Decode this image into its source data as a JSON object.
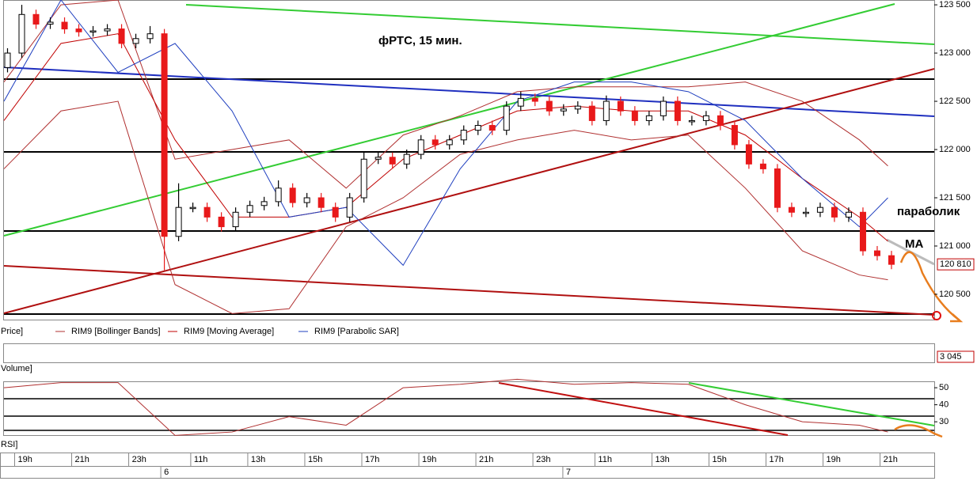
{
  "chart_data": [
    {
      "type": "candlestick",
      "title": "фРТС,  15 мин.",
      "legend_label": "Price]",
      "up_color": "#ffffff",
      "down_color": "#e8191a",
      "xlim": [
        0,
        130.5
      ],
      "ylim": [
        120270,
        123550
      ],
      "yticks": [
        {
          "value": 123500,
          "label": "123 500"
        },
        {
          "value": 123000,
          "label": "123 000"
        },
        {
          "value": 122500,
          "label": "122 500"
        },
        {
          "value": 122000,
          "label": "122 000"
        },
        {
          "value": 121500,
          "label": "121 500"
        },
        {
          "value": 121000,
          "label": "121 000"
        },
        {
          "value": 120500,
          "label": "120 500"
        }
      ],
      "xticks": [
        {
          "value": 1.5,
          "label": "19h"
        },
        {
          "value": 9.5,
          "label": "21h"
        },
        {
          "value": 17.5,
          "label": "23h"
        },
        {
          "value": 26.2,
          "label": "11h"
        },
        {
          "value": 34.2,
          "label": "13h"
        },
        {
          "value": 42.2,
          "label": "15h"
        },
        {
          "value": 50.2,
          "label": "17h"
        },
        {
          "value": 58.2,
          "label": "19h"
        },
        {
          "value": 66.2,
          "label": "21h"
        },
        {
          "value": 74.2,
          "label": "23h"
        },
        {
          "value": 82.9,
          "label": "11h"
        },
        {
          "value": 90.9,
          "label": "13h"
        },
        {
          "value": 98.9,
          "label": "15h"
        },
        {
          "value": 106.9,
          "label": "17h"
        },
        {
          "value": 114.9,
          "label": "19h"
        },
        {
          "value": 122.9,
          "label": "21h"
        }
      ],
      "day_ticks": [
        {
          "value": 22.0,
          "label": "6"
        },
        {
          "value": 78.4,
          "label": "7"
        }
      ],
      "last_value": {
        "value": 120810,
        "label": "120 810"
      },
      "annotations": [
        "параболик",
        "MA"
      ],
      "x": [
        0.5,
        2.5,
        4.5,
        6.5,
        8.5,
        10.5,
        12.5,
        14.5,
        16.5,
        18.5,
        20.5,
        22.5,
        24.5,
        26.5,
        28.5,
        30.5,
        32.5,
        34.5,
        36.5,
        38.5,
        40.5,
        42.5,
        44.5,
        46.5,
        48.5,
        50.5,
        52.5,
        54.5,
        56.5,
        58.5,
        60.5,
        62.5,
        64.5,
        66.5,
        68.5,
        70.5,
        72.5,
        74.5,
        76.5,
        78.5,
        80.5,
        82.5,
        84.5,
        86.5,
        88.5,
        90.5,
        92.5,
        94.5,
        96.5,
        98.5,
        100.5,
        102.5,
        104.5,
        106.5,
        108.5,
        110.5,
        112.5,
        114.5,
        116.5,
        118.5,
        120.5,
        122.5,
        124.5
      ],
      "open": [
        122850,
        123000,
        123400,
        123300,
        123320,
        123250,
        123220,
        123230,
        123250,
        123100,
        123150,
        123200,
        121100,
        121400,
        121400,
        121300,
        121200,
        121350,
        121420,
        121460,
        121600,
        121450,
        121500,
        121400,
        121300,
        121500,
        121900,
        121920,
        121850,
        121950,
        122100,
        122050,
        122100,
        122200,
        122250,
        122200,
        122450,
        122530,
        122500,
        122400,
        122420,
        122450,
        122300,
        122500,
        122400,
        122300,
        122350,
        122500,
        122300,
        122300,
        122350,
        122250,
        122050,
        121850,
        121800,
        121400,
        121350,
        121350,
        121400,
        121300,
        121350,
        120950,
        120900
      ],
      "high": [
        123050,
        123500,
        123450,
        123370,
        123370,
        123300,
        123280,
        123300,
        123300,
        123200,
        123280,
        123250,
        121650,
        121450,
        121450,
        121350,
        121400,
        121470,
        121510,
        121680,
        121650,
        121550,
        121550,
        121450,
        121550,
        121980,
        121970,
        121970,
        122000,
        122150,
        122150,
        122150,
        122250,
        122300,
        122300,
        122500,
        122600,
        122580,
        122550,
        122470,
        122500,
        122500,
        122560,
        122550,
        122450,
        122400,
        122550,
        122550,
        122350,
        122400,
        122400,
        122300,
        122100,
        121900,
        121850,
        121450,
        121400,
        121450,
        121450,
        121400,
        121400,
        121000,
        120950
      ],
      "low": [
        122800,
        122950,
        123250,
        123250,
        123200,
        123170,
        123170,
        123180,
        123050,
        123050,
        123100,
        120750,
        121050,
        121350,
        121250,
        121150,
        121150,
        121300,
        121370,
        121410,
        121400,
        121400,
        121350,
        121250,
        121250,
        121450,
        121850,
        121800,
        121800,
        121900,
        122000,
        122000,
        122050,
        122150,
        122150,
        122150,
        122400,
        122450,
        122350,
        122350,
        122370,
        122250,
        122250,
        122350,
        122250,
        122250,
        122300,
        122250,
        122250,
        122250,
        122200,
        122000,
        121800,
        121750,
        121350,
        121300,
        121300,
        121300,
        121250,
        121250,
        120900,
        120850,
        120760
      ],
      "close": [
        123000,
        123400,
        123300,
        123320,
        123250,
        123220,
        123230,
        123250,
        123100,
        123150,
        123200,
        121100,
        121400,
        121400,
        121300,
        121200,
        121350,
        121420,
        121460,
        121600,
        121450,
        121500,
        121400,
        121300,
        121500,
        121900,
        121920,
        121850,
        121950,
        122100,
        122050,
        122100,
        122200,
        122250,
        122200,
        122450,
        122530,
        122500,
        122400,
        122420,
        122450,
        122300,
        122500,
        122400,
        122300,
        122350,
        122500,
        122300,
        122300,
        122350,
        122250,
        122050,
        121850,
        121800,
        121400,
        121350,
        121350,
        121400,
        121300,
        121350,
        120950,
        120900,
        120810
      ],
      "series": [
        {
          "name": "RIM9 [Bollinger Bands]",
          "color": "#b03030",
          "x": [
            0,
            8,
            16,
            24,
            32,
            40,
            48,
            56,
            64,
            72,
            80,
            88,
            96,
            104,
            112,
            120,
            124
          ],
          "upper": [
            122700,
            123500,
            123550,
            121900,
            122000,
            122100,
            121600,
            122150,
            122350,
            122600,
            122650,
            122650,
            122650,
            122700,
            122500,
            122100,
            121830
          ],
          "lower": [
            121800,
            122400,
            122500,
            120600,
            120300,
            120350,
            121200,
            121500,
            121950,
            122100,
            122200,
            122100,
            122150,
            121600,
            120950,
            120700,
            120650
          ]
        },
        {
          "name": "RIM9 [Moving Average]",
          "color": "#c00000",
          "x": [
            0,
            8,
            16,
            24,
            32,
            40,
            48,
            56,
            64,
            72,
            80,
            88,
            96,
            104,
            112,
            120,
            124
          ],
          "values": [
            122300,
            123100,
            123200,
            122100,
            121300,
            121300,
            121400,
            121900,
            122150,
            122400,
            122450,
            122400,
            122400,
            122150,
            121700,
            121300,
            121050
          ]
        },
        {
          "name": "RIM9 [Parabolic SAR]",
          "color": "#1f3fbf",
          "x": [
            0,
            8,
            16,
            24,
            32,
            40,
            48,
            56,
            64,
            72,
            80,
            88,
            96,
            104,
            112,
            120,
            124
          ],
          "values": [
            122500,
            123550,
            122800,
            123100,
            122400,
            121300,
            121400,
            120800,
            121800,
            122500,
            122700,
            122700,
            122600,
            122300,
            121700,
            121200,
            121500
          ]
        }
      ]
    },
    {
      "type": "bar",
      "legend_label": "Volume]",
      "last_value": {
        "value": 3045,
        "label": "3 045"
      }
    },
    {
      "type": "line",
      "legend_label": "RSI]",
      "color": "#b03030",
      "xlim": [
        0,
        130.5
      ],
      "ylim": [
        23.1,
        53.3
      ],
      "yticks": [
        30,
        40,
        50
      ],
      "x": [
        0,
        8,
        16,
        24,
        32,
        40,
        48,
        56,
        64,
        72,
        80,
        88,
        96,
        104,
        112,
        120,
        124
      ],
      "values": [
        50,
        53,
        53,
        22,
        24,
        33,
        28,
        50,
        52,
        55,
        52,
        53,
        52,
        40,
        30,
        28,
        24
      ]
    }
  ]
}
